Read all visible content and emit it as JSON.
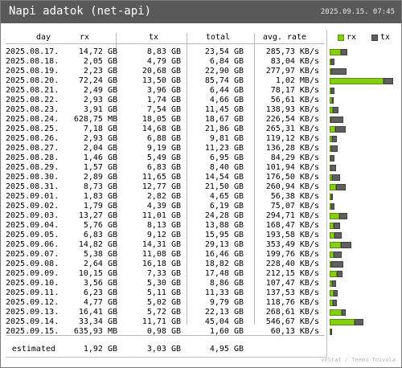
{
  "title": "Napi adatok (net-api)",
  "timestamp": "2025.09.15. 07:45",
  "headers": {
    "day": "day",
    "rx": "rx",
    "tx": "tx",
    "total": "total",
    "rate": "avg. rate"
  },
  "legend": {
    "rx": "rx",
    "tx": "tx"
  },
  "colors": {
    "rx": "#84cf10",
    "tx": "#5f5f5f",
    "titlebar": "#595959"
  },
  "rows": [
    {
      "day": "2025.08.17.",
      "rx": "14,72 GB",
      "tx": "8,83 GB",
      "total": "23,54 GB",
      "rate": "285,73 KB/s",
      "rx_gib": 14.72,
      "tx_gib": 8.83
    },
    {
      "day": "2025.08.18.",
      "rx": "2,05 GB",
      "tx": "4,79 GB",
      "total": "6,84 GB",
      "rate": "83,04 KB/s",
      "rx_gib": 2.05,
      "tx_gib": 4.79
    },
    {
      "day": "2025.08.19.",
      "rx": "2,23 GB",
      "tx": "20,68 GB",
      "total": "22,90 GB",
      "rate": "277,97 KB/s",
      "rx_gib": 2.23,
      "tx_gib": 20.68
    },
    {
      "day": "2025.08.20.",
      "rx": "72,24 GB",
      "tx": "13,50 GB",
      "total": "85,74 GB",
      "rate": "1,02 MB/s",
      "rx_gib": 72.24,
      "tx_gib": 13.5
    },
    {
      "day": "2025.08.21.",
      "rx": "2,49 GB",
      "tx": "3,96 GB",
      "total": "6,44 GB",
      "rate": "78,17 KB/s",
      "rx_gib": 2.49,
      "tx_gib": 3.96
    },
    {
      "day": "2025.08.22.",
      "rx": "2,93 GB",
      "tx": "1,74 GB",
      "total": "4,66 GB",
      "rate": "56,61 KB/s",
      "rx_gib": 2.93,
      "tx_gib": 1.74
    },
    {
      "day": "2025.08.23.",
      "rx": "3,91 GB",
      "tx": "7,54 GB",
      "total": "11,45 GB",
      "rate": "138,93 KB/s",
      "rx_gib": 3.91,
      "tx_gib": 7.54
    },
    {
      "day": "2025.08.24.",
      "rx": "628,75 MB",
      "tx": "18,05 GB",
      "total": "18,67 GB",
      "rate": "226,54 KB/s",
      "rx_gib": 0.61,
      "tx_gib": 18.05
    },
    {
      "day": "2025.08.25.",
      "rx": "7,18 GB",
      "tx": "14,68 GB",
      "total": "21,86 GB",
      "rate": "265,31 KB/s",
      "rx_gib": 7.18,
      "tx_gib": 14.68
    },
    {
      "day": "2025.08.26.",
      "rx": "2,93 GB",
      "tx": "6,88 GB",
      "total": "9,81 GB",
      "rate": "119,12 KB/s",
      "rx_gib": 2.93,
      "tx_gib": 6.88
    },
    {
      "day": "2025.08.27.",
      "rx": "2,04 GB",
      "tx": "9,19 GB",
      "total": "11,23 GB",
      "rate": "136,28 KB/s",
      "rx_gib": 2.04,
      "tx_gib": 9.19
    },
    {
      "day": "2025.08.28.",
      "rx": "1,46 GB",
      "tx": "5,49 GB",
      "total": "6,95 GB",
      "rate": "84,29 KB/s",
      "rx_gib": 1.46,
      "tx_gib": 5.49
    },
    {
      "day": "2025.08.29.",
      "rx": "1,57 GB",
      "tx": "6,83 GB",
      "total": "8,40 GB",
      "rate": "101,94 KB/s",
      "rx_gib": 1.57,
      "tx_gib": 6.83
    },
    {
      "day": "2025.08.30.",
      "rx": "2,89 GB",
      "tx": "11,65 GB",
      "total": "14,54 GB",
      "rate": "176,50 KB/s",
      "rx_gib": 2.89,
      "tx_gib": 11.65
    },
    {
      "day": "2025.08.31.",
      "rx": "8,73 GB",
      "tx": "12,77 GB",
      "total": "21,50 GB",
      "rate": "260,94 KB/s",
      "rx_gib": 8.73,
      "tx_gib": 12.77
    },
    {
      "day": "2025.09.01.",
      "rx": "1,83 GB",
      "tx": "2,82 GB",
      "total": "4,65 GB",
      "rate": "56,38 KB/s",
      "rx_gib": 1.83,
      "tx_gib": 2.82
    },
    {
      "day": "2025.09.02.",
      "rx": "1,79 GB",
      "tx": "4,39 GB",
      "total": "6,19 GB",
      "rate": "75,07 KB/s",
      "rx_gib": 1.79,
      "tx_gib": 4.39
    },
    {
      "day": "2025.09.03.",
      "rx": "13,27 GB",
      "tx": "11,01 GB",
      "total": "24,28 GB",
      "rate": "294,71 KB/s",
      "rx_gib": 13.27,
      "tx_gib": 11.01
    },
    {
      "day": "2025.09.04.",
      "rx": "5,76 GB",
      "tx": "8,13 GB",
      "total": "13,88 GB",
      "rate": "168,47 KB/s",
      "rx_gib": 5.76,
      "tx_gib": 8.13
    },
    {
      "day": "2025.09.05.",
      "rx": "6,83 GB",
      "tx": "9,12 GB",
      "total": "15,95 GB",
      "rate": "193,58 KB/s",
      "rx_gib": 6.83,
      "tx_gib": 9.12
    },
    {
      "day": "2025.09.06.",
      "rx": "14,82 GB",
      "tx": "14,31 GB",
      "total": "29,13 GB",
      "rate": "353,49 KB/s",
      "rx_gib": 14.82,
      "tx_gib": 14.31
    },
    {
      "day": "2025.09.07.",
      "rx": "5,38 GB",
      "tx": "11,08 GB",
      "total": "16,46 GB",
      "rate": "199,76 KB/s",
      "rx_gib": 5.38,
      "tx_gib": 11.08
    },
    {
      "day": "2025.09.08.",
      "rx": "2,64 GB",
      "tx": "16,18 GB",
      "total": "18,82 GB",
      "rate": "228,40 KB/s",
      "rx_gib": 2.64,
      "tx_gib": 16.18
    },
    {
      "day": "2025.09.09.",
      "rx": "10,15 GB",
      "tx": "7,33 GB",
      "total": "17,48 GB",
      "rate": "212,15 KB/s",
      "rx_gib": 10.15,
      "tx_gib": 7.33
    },
    {
      "day": "2025.09.10.",
      "rx": "3,56 GB",
      "tx": "5,30 GB",
      "total": "8,86 GB",
      "rate": "107,47 KB/s",
      "rx_gib": 3.56,
      "tx_gib": 5.3
    },
    {
      "day": "2025.09.11.",
      "rx": "6,23 GB",
      "tx": "5,11 GB",
      "total": "11,33 GB",
      "rate": "137,53 KB/s",
      "rx_gib": 6.23,
      "tx_gib": 5.11
    },
    {
      "day": "2025.09.12.",
      "rx": "4,77 GB",
      "tx": "5,02 GB",
      "total": "9,79 GB",
      "rate": "118,76 KB/s",
      "rx_gib": 4.77,
      "tx_gib": 5.02
    },
    {
      "day": "2025.09.13.",
      "rx": "16,41 GB",
      "tx": "5,72 GB",
      "total": "22,13 GB",
      "rate": "268,61 KB/s",
      "rx_gib": 16.41,
      "tx_gib": 5.72
    },
    {
      "day": "2025.09.14.",
      "rx": "33,34 GB",
      "tx": "11,71 GB",
      "total": "45,04 GB",
      "rate": "546,67 KB/s",
      "rx_gib": 33.34,
      "tx_gib": 11.71
    },
    {
      "day": "2025.09.15.",
      "rx": "635,93 MB",
      "tx": "0,98 GB",
      "total": "1,60 GB",
      "rate": "60,13 KB/s",
      "rx_gib": 0.62,
      "tx_gib": 0.98
    }
  ],
  "estimated": {
    "label": "estimated",
    "rx": "1,92 GB",
    "tx": "3,03 GB",
    "total": "4,95 GB"
  },
  "credit": "vnStat / Teemu Toivola"
}
